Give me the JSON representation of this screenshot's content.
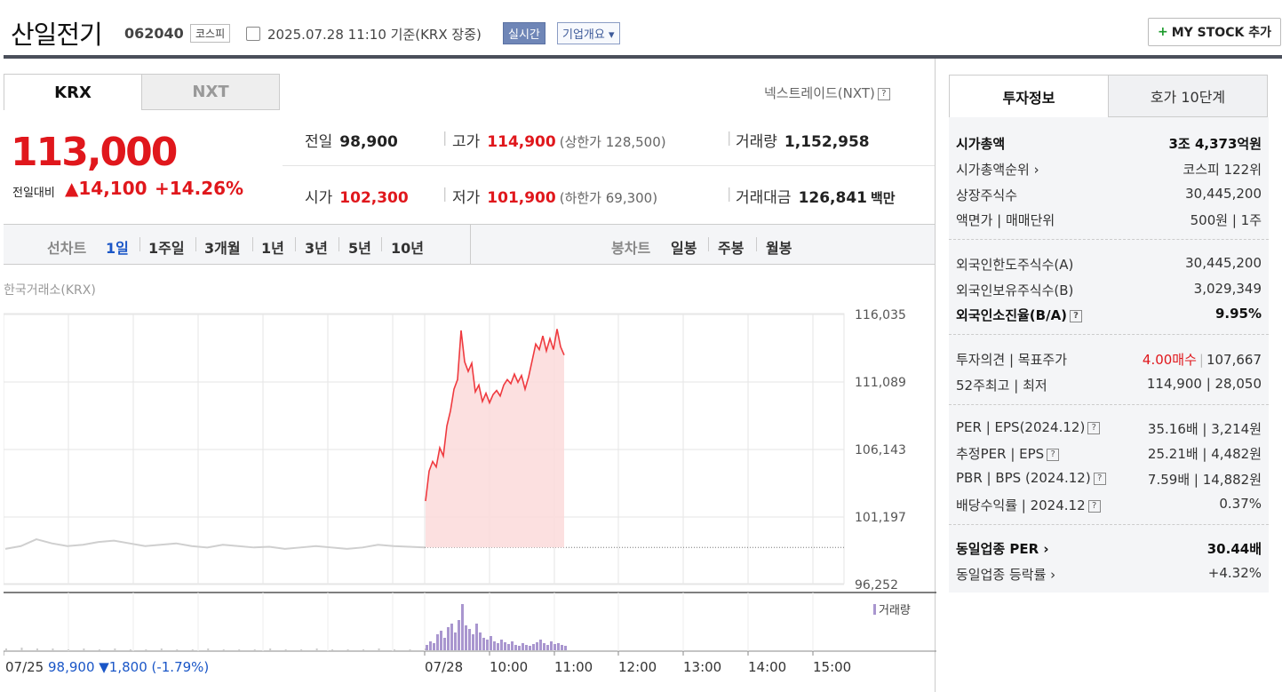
{
  "header": {
    "name": "산일전기",
    "code": "062040",
    "market": "코스피",
    "datetime": "2025.07.28 11:10  기준(KRX 장중)",
    "realtime": "실시간",
    "overview": "기업개요 ▾",
    "mystock": "MY STOCK 추가",
    "mystock_plus": "+"
  },
  "tabs": {
    "krx": "KRX",
    "nxt": "NXT",
    "nxt_link": "넥스트레이드(NXT)"
  },
  "quote": {
    "price": "113,000",
    "change_label": "전일대비",
    "change_amount": "▲14,100",
    "change_pct": "+14.26%",
    "prev_close_label": "전일",
    "prev_close": "98,900",
    "high_label": "고가",
    "high": "114,900",
    "upper_limit": "(상한가 128,500)",
    "volume_label": "거래량",
    "volume": "1,152,958",
    "open_label": "시가",
    "open": "102,300",
    "low_label": "저가",
    "low": "101,900",
    "lower_limit": "(하한가 69,300)",
    "amount_label": "거래대금",
    "amount": "126,841",
    "amount_unit": "백만"
  },
  "periods": {
    "line_label": "선차트",
    "line": [
      "1일",
      "1주일",
      "3개월",
      "1년",
      "3년",
      "5년",
      "10년"
    ],
    "candle_label": "봉차트",
    "candle": [
      "일봉",
      "주봉",
      "월봉"
    ]
  },
  "source": "한국거래소(KRX)",
  "chart_data": {
    "type": "line",
    "y_ticks": [
      "116,035",
      "111,089",
      "106,143",
      "101,197",
      "96,252"
    ],
    "x_ticks": [
      "07/25",
      "07/28",
      "10:00",
      "11:00",
      "12:00",
      "13:00",
      "14:00",
      "15:00"
    ],
    "prev_day_footer": {
      "date": "07/25",
      "close": "98,900",
      "change": "▼1,800",
      "pct": "(-1.79%)"
    },
    "volume_legend": "거래량",
    "ylim": [
      96252,
      116035
    ],
    "baseline": 98900,
    "prev_day_series": [
      98800,
      99000,
      99500,
      99200,
      99000,
      99100,
      99300,
      99400,
      99200,
      99000,
      99100,
      99200,
      99000,
      98900,
      99100,
      99000,
      98900,
      98950,
      98800,
      98900,
      99000,
      98900,
      98800,
      98900,
      99100,
      99000,
      98950,
      98900
    ],
    "today_series": [
      102300,
      104500,
      105200,
      104800,
      106200,
      105600,
      107800,
      108900,
      110500,
      111200,
      114800,
      112500,
      111800,
      112400,
      110300,
      110800,
      109600,
      110200,
      109500,
      110100,
      110400,
      110000,
      110800,
      111200,
      110900,
      111600,
      111000,
      111500,
      110500,
      111400,
      112600,
      113800,
      113400,
      114400,
      113300,
      114200,
      113400,
      114900,
      113600,
      113000
    ],
    "today_volume": [
      6,
      10,
      8,
      18,
      22,
      14,
      26,
      30,
      20,
      34,
      52,
      28,
      24,
      18,
      30,
      20,
      14,
      12,
      16,
      10,
      8,
      12,
      9,
      7,
      10,
      6,
      5,
      8,
      6,
      5,
      7,
      9,
      12,
      8,
      6,
      10,
      7,
      8,
      6,
      5
    ],
    "prev_volume": [
      2,
      3,
      2,
      2,
      1,
      2,
      1,
      2,
      1,
      1,
      2,
      1,
      1,
      2,
      1,
      1,
      1,
      2,
      1,
      1,
      2,
      1,
      1,
      1,
      2,
      1,
      1,
      2
    ]
  },
  "right": {
    "tab_invest": "투자정보",
    "tab_ask": "호가 10단계",
    "rows": [
      {
        "k": "시가총액",
        "v": "3조 4,373억원"
      },
      {
        "k": "시가총액순위 ›",
        "v": "코스피 122위"
      },
      {
        "k": "상장주식수",
        "v": "30,445,200"
      },
      {
        "k": "액면가 | 매매단위",
        "v": "500원 | 1주"
      },
      {
        "k": "외국인한도주식수(A)",
        "v": "30,445,200"
      },
      {
        "k": "외국인보유주식수(B)",
        "v": "3,029,349"
      },
      {
        "k": "외국인소진율(B/A)",
        "v": "9.95%"
      },
      {
        "k": "투자의견 | 목표주가",
        "v_red": "4.00매수",
        "v": "107,667"
      },
      {
        "k": "52주최고 | 최저",
        "v": "114,900 | 28,050"
      },
      {
        "k": "PER | EPS(2024.12)",
        "v": "35.16배 | 3,214원"
      },
      {
        "k": "추정PER | EPS",
        "v": "25.21배 | 4,482원"
      },
      {
        "k": "PBR | BPS (2024.12)",
        "v": "7.59배 | 14,882원"
      },
      {
        "k": "배당수익률 | 2024.12",
        "v": "0.37%"
      },
      {
        "k": "동일업종 PER ›",
        "v": "30.44배"
      },
      {
        "k": "동일업종 등락률 ›",
        "v": "+4.32%"
      }
    ],
    "help": "?"
  },
  "colors": {
    "up": "#e0171c",
    "down": "#1a56c7",
    "volume": "#a996cf"
  }
}
